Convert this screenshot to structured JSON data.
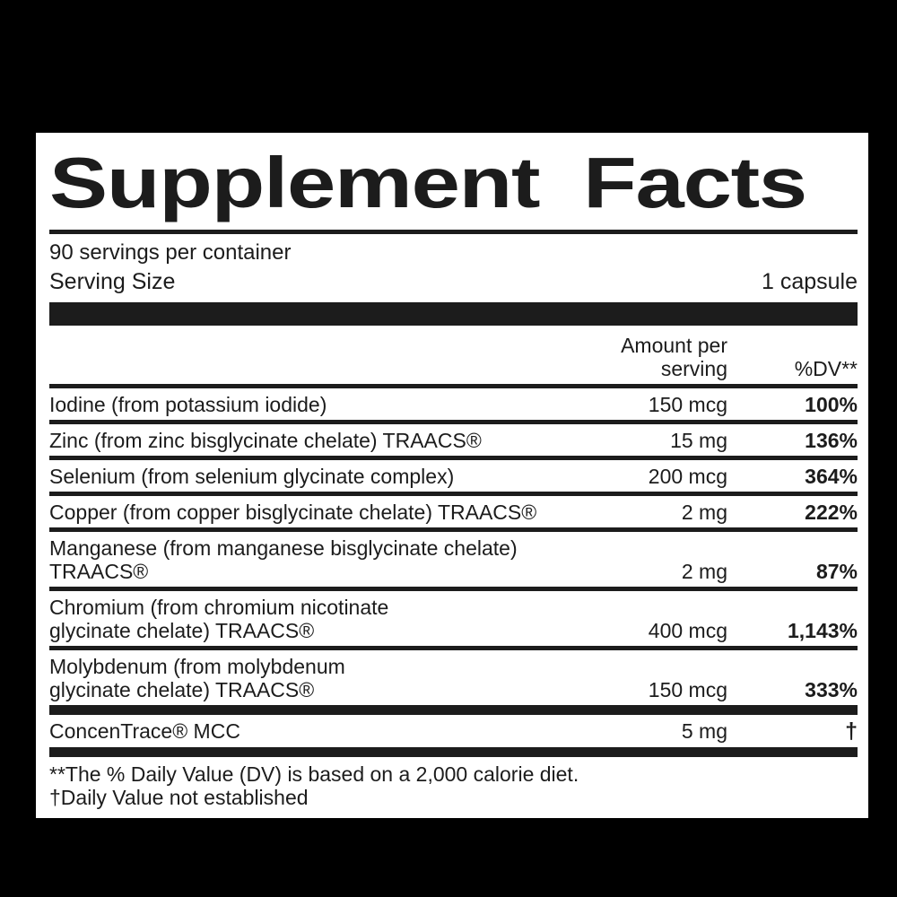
{
  "label": {
    "title_word1": "Supplement",
    "title_word2": "Facts",
    "servings_per_container": "90 servings per container",
    "serving_size_label": "Serving Size",
    "serving_size_value": "1 capsule",
    "columns": {
      "amount": "Amount per serving",
      "dv": "%DV**"
    },
    "rows": [
      {
        "name": "Iodine (from potassium iodide)",
        "amount": "150 mcg",
        "dv": "100%"
      },
      {
        "name": "Zinc (from zinc bisglycinate chelate) TRAACS®",
        "amount": "15 mg",
        "dv": "136%"
      },
      {
        "name": "Selenium (from selenium glycinate complex)",
        "amount": "200 mcg",
        "dv": "364%"
      },
      {
        "name": "Copper (from copper bisglycinate chelate) TRAACS®",
        "amount": "2 mg",
        "dv": "222%"
      },
      {
        "name": "Manganese (from manganese bisglycinate chelate) TRAACS®",
        "amount": "2 mg",
        "dv": "87%"
      },
      {
        "name": "Chromium (from chromium nicotinate\nglycinate chelate) TRAACS®",
        "amount": "400 mcg",
        "dv": "1,143%"
      },
      {
        "name": "Molybdenum (from molybdenum\nglycinate chelate) TRAACS®",
        "amount": "150 mcg",
        "dv": "333%"
      }
    ],
    "trace_row": {
      "name": "ConcenTrace® MCC",
      "amount": "5 mg",
      "dv": "†"
    },
    "footnotes": {
      "dv_note": "**The % Daily Value (DV) is based on a 2,000 calorie diet.",
      "dagger_note": "†Daily Value not established"
    },
    "colors": {
      "ink": "#1c1c1c",
      "panel": "#ffffff",
      "background": "#000000"
    }
  }
}
